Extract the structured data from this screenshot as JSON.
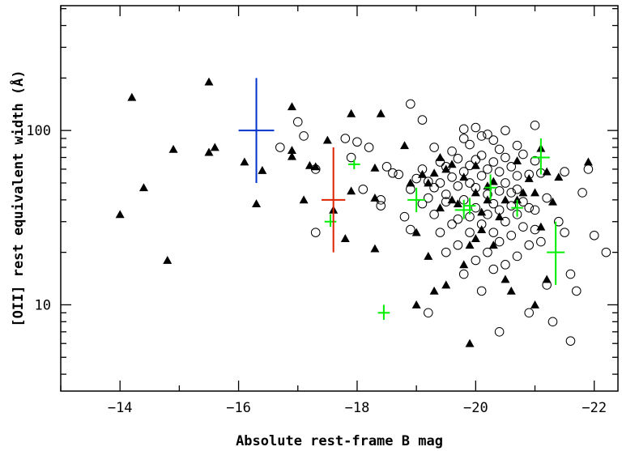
{
  "chart_data": {
    "type": "scatter",
    "xlabel": "Absolute rest-frame B mag",
    "ylabel": "[OII] rest equivalent width (Å)",
    "x_axis": {
      "range": [
        -13,
        -22.4
      ],
      "reversed": true,
      "ticks": [
        -14,
        -16,
        -18,
        -20,
        -22
      ],
      "tick_labels": [
        "−14",
        "−16",
        "−18",
        "−20",
        "−22"
      ]
    },
    "y_axis": {
      "scale": "log",
      "range": [
        3.2,
        520
      ],
      "ticks": [
        10,
        100
      ],
      "tick_labels": [
        "10",
        "100"
      ]
    },
    "grid": false,
    "series": [
      {
        "marker": "filled-triangle",
        "color": "#000000",
        "points": [
          [
            -14.0,
            33
          ],
          [
            -14.2,
            155
          ],
          [
            -14.4,
            47
          ],
          [
            -14.8,
            18
          ],
          [
            -14.9,
            78
          ],
          [
            -15.5,
            190
          ],
          [
            -15.5,
            75
          ],
          [
            -15.6,
            80
          ],
          [
            -16.1,
            66
          ],
          [
            -16.3,
            38
          ],
          [
            -16.4,
            59
          ],
          [
            -16.9,
            137
          ],
          [
            -16.9,
            77
          ],
          [
            -16.9,
            71
          ],
          [
            -17.1,
            40
          ],
          [
            -17.2,
            63
          ],
          [
            -17.3,
            62
          ],
          [
            -17.5,
            88
          ],
          [
            -17.6,
            35
          ],
          [
            -17.8,
            24
          ],
          [
            -17.9,
            45
          ],
          [
            -17.9,
            125
          ],
          [
            -18.3,
            61
          ],
          [
            -18.3,
            21
          ],
          [
            -18.3,
            41
          ],
          [
            -18.4,
            125
          ],
          [
            -18.8,
            82
          ],
          [
            -18.9,
            50
          ],
          [
            -19.0,
            26
          ],
          [
            -19.0,
            10
          ],
          [
            -19.1,
            56
          ],
          [
            -19.2,
            19
          ],
          [
            -19.2,
            50
          ],
          [
            -19.3,
            57
          ],
          [
            -19.3,
            12
          ],
          [
            -19.4,
            70
          ],
          [
            -19.4,
            36
          ],
          [
            -19.5,
            13
          ],
          [
            -19.5,
            60
          ],
          [
            -19.6,
            64
          ],
          [
            -19.6,
            40
          ],
          [
            -19.7,
            38
          ],
          [
            -19.8,
            54
          ],
          [
            -19.8,
            17
          ],
          [
            -19.9,
            22
          ],
          [
            -19.9,
            6
          ],
          [
            -20.0,
            24
          ],
          [
            -20.0,
            63
          ],
          [
            -20.0,
            44
          ],
          [
            -20.1,
            27
          ],
          [
            -20.1,
            34
          ],
          [
            -20.2,
            48
          ],
          [
            -20.2,
            40
          ],
          [
            -20.3,
            51
          ],
          [
            -20.3,
            22
          ],
          [
            -20.4,
            32
          ],
          [
            -20.5,
            14
          ],
          [
            -20.5,
            40
          ],
          [
            -20.6,
            12
          ],
          [
            -20.7,
            40
          ],
          [
            -20.7,
            67
          ],
          [
            -20.8,
            44
          ],
          [
            -20.9,
            53
          ],
          [
            -21.0,
            44
          ],
          [
            -21.0,
            10
          ],
          [
            -21.1,
            79
          ],
          [
            -21.1,
            28
          ],
          [
            -21.2,
            58
          ],
          [
            -21.2,
            14
          ],
          [
            -21.3,
            39
          ],
          [
            -21.4,
            54
          ],
          [
            -21.9,
            66
          ]
        ]
      },
      {
        "marker": "open-circle",
        "color": "#000000",
        "points": [
          [
            -16.7,
            80
          ],
          [
            -17.0,
            112
          ],
          [
            -17.1,
            93
          ],
          [
            -17.3,
            60
          ],
          [
            -17.3,
            26
          ],
          [
            -17.8,
            90
          ],
          [
            -17.9,
            70
          ],
          [
            -18.0,
            86
          ],
          [
            -18.1,
            46
          ],
          [
            -18.2,
            80
          ],
          [
            -18.4,
            37
          ],
          [
            -18.4,
            40
          ],
          [
            -18.5,
            62
          ],
          [
            -18.6,
            57
          ],
          [
            -18.7,
            56
          ],
          [
            -18.8,
            32
          ],
          [
            -18.9,
            27
          ],
          [
            -18.9,
            46
          ],
          [
            -18.9,
            142
          ],
          [
            -19.0,
            53
          ],
          [
            -19.1,
            38
          ],
          [
            -19.1,
            60
          ],
          [
            -19.1,
            115
          ],
          [
            -19.2,
            51
          ],
          [
            -19.2,
            41
          ],
          [
            -19.2,
            9
          ],
          [
            -19.3,
            47
          ],
          [
            -19.3,
            33
          ],
          [
            -19.3,
            80
          ],
          [
            -19.4,
            50
          ],
          [
            -19.4,
            66
          ],
          [
            -19.4,
            26
          ],
          [
            -19.5,
            62
          ],
          [
            -19.5,
            43
          ],
          [
            -19.5,
            39
          ],
          [
            -19.5,
            20
          ],
          [
            -19.6,
            76
          ],
          [
            -19.6,
            54
          ],
          [
            -19.6,
            29
          ],
          [
            -19.7,
            69
          ],
          [
            -19.7,
            48
          ],
          [
            -19.7,
            31
          ],
          [
            -19.7,
            22
          ],
          [
            -19.8,
            90
          ],
          [
            -19.8,
            102
          ],
          [
            -19.8,
            58
          ],
          [
            -19.8,
            40
          ],
          [
            -19.8,
            15
          ],
          [
            -19.9,
            83
          ],
          [
            -19.9,
            63
          ],
          [
            -19.9,
            50
          ],
          [
            -19.9,
            32
          ],
          [
            -19.9,
            26
          ],
          [
            -20.0,
            104
          ],
          [
            -20.0,
            68
          ],
          [
            -20.0,
            47
          ],
          [
            -20.0,
            36
          ],
          [
            -20.0,
            18
          ],
          [
            -20.1,
            93
          ],
          [
            -20.1,
            72
          ],
          [
            -20.1,
            55
          ],
          [
            -20.1,
            29
          ],
          [
            -20.1,
            12
          ],
          [
            -20.2,
            95
          ],
          [
            -20.2,
            60
          ],
          [
            -20.2,
            43
          ],
          [
            -20.2,
            33
          ],
          [
            -20.2,
            20
          ],
          [
            -20.3,
            88
          ],
          [
            -20.3,
            66
          ],
          [
            -20.3,
            38
          ],
          [
            -20.3,
            26
          ],
          [
            -20.3,
            16
          ],
          [
            -20.4,
            78
          ],
          [
            -20.4,
            58
          ],
          [
            -20.4,
            45
          ],
          [
            -20.4,
            35
          ],
          [
            -20.4,
            23
          ],
          [
            -20.4,
            7
          ],
          [
            -20.5,
            100
          ],
          [
            -20.5,
            70
          ],
          [
            -20.5,
            50
          ],
          [
            -20.5,
            30
          ],
          [
            -20.5,
            17
          ],
          [
            -20.6,
            62
          ],
          [
            -20.6,
            44
          ],
          [
            -20.6,
            37
          ],
          [
            -20.6,
            25
          ],
          [
            -20.7,
            82
          ],
          [
            -20.7,
            55
          ],
          [
            -20.7,
            46
          ],
          [
            -20.7,
            33
          ],
          [
            -20.7,
            19
          ],
          [
            -20.8,
            73
          ],
          [
            -20.8,
            39
          ],
          [
            -20.8,
            28
          ],
          [
            -20.9,
            56
          ],
          [
            -20.9,
            36
          ],
          [
            -20.9,
            22
          ],
          [
            -20.9,
            9
          ],
          [
            -21.0,
            107
          ],
          [
            -21.0,
            67
          ],
          [
            -21.0,
            35
          ],
          [
            -21.0,
            27
          ],
          [
            -21.1,
            57
          ],
          [
            -21.1,
            23
          ],
          [
            -21.2,
            41
          ],
          [
            -21.2,
            13
          ],
          [
            -21.3,
            8
          ],
          [
            -21.4,
            30
          ],
          [
            -21.5,
            26
          ],
          [
            -21.5,
            58
          ],
          [
            -21.6,
            15
          ],
          [
            -21.6,
            6.2
          ],
          [
            -21.7,
            12
          ],
          [
            -21.8,
            44
          ],
          [
            -21.9,
            60
          ],
          [
            -22.0,
            25
          ],
          [
            -22.2,
            20
          ]
        ]
      },
      {
        "marker": "cross",
        "color": "#00ee00",
        "points": [
          {
            "x": -17.55,
            "y": 30,
            "xerr": 0.1,
            "yerr": [
              28,
              33
            ]
          },
          {
            "x": -17.95,
            "y": 64,
            "xerr": 0.1,
            "yerr": [
              60,
              68
            ]
          },
          {
            "x": -18.45,
            "y": 9,
            "xerr": 0.1,
            "yerr": [
              8.2,
              10
            ]
          },
          {
            "x": -19.0,
            "y": 40,
            "xerr": 0.15,
            "yerr": [
              34,
              47
            ]
          },
          {
            "x": -19.8,
            "y": 35,
            "xerr": 0.15,
            "yerr": [
              31,
              40
            ]
          },
          {
            "x": -19.9,
            "y": 37,
            "xerr": 0.1,
            "yerr": [
              33,
              41
            ]
          },
          {
            "x": -20.25,
            "y": 47,
            "xerr": 0.1,
            "yerr": [
              40,
              56
            ]
          },
          {
            "x": -20.7,
            "y": 36,
            "xerr": 0.1,
            "yerr": [
              32,
              40
            ]
          },
          {
            "x": -21.1,
            "y": 70,
            "xerr": 0.15,
            "yerr": [
              56,
              90
            ]
          },
          {
            "x": -21.35,
            "y": 20,
            "xerr": 0.15,
            "yerr": [
              13,
              30
            ]
          }
        ]
      },
      {
        "marker": "cross",
        "color": "#0033cc",
        "points": [
          {
            "x": -16.3,
            "y": 100,
            "xerr": 0.3,
            "yerr": [
              50,
              200
            ]
          }
        ]
      },
      {
        "marker": "cross",
        "color": "#dd2200",
        "points": [
          {
            "x": -17.6,
            "y": 40,
            "xerr": 0.2,
            "yerr": [
              20,
              80
            ]
          }
        ]
      }
    ]
  }
}
